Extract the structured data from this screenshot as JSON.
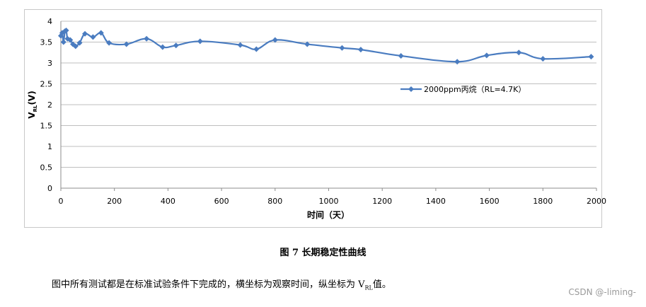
{
  "chart_data": {
    "type": "line",
    "xlabel": "时间（天）",
    "ylabel_main": "V",
    "ylabel_sub": "RL",
    "ylabel_unit": "(V)",
    "xlim": [
      0,
      2000
    ],
    "ylim": [
      0,
      4
    ],
    "xticks": [
      "0",
      "200",
      "400",
      "600",
      "800",
      "1000",
      "1200",
      "1400",
      "1600",
      "1800",
      "2000"
    ],
    "yticks": [
      "0",
      "0.5",
      "1",
      "1.5",
      "2",
      "2.5",
      "3",
      "3.5",
      "4"
    ],
    "grid": true,
    "legend_position": "center-right",
    "series": [
      {
        "name": "2000ppm丙烷（RL=4.7K）",
        "color": "#4a7cc0",
        "x": [
          0,
          5,
          10,
          15,
          20,
          25,
          35,
          45,
          55,
          70,
          90,
          120,
          150,
          180,
          245,
          320,
          380,
          430,
          520,
          670,
          730,
          800,
          920,
          1050,
          1120,
          1270,
          1480,
          1590,
          1710,
          1800,
          1980
        ],
        "y": [
          3.65,
          3.72,
          3.5,
          3.76,
          3.78,
          3.58,
          3.55,
          3.45,
          3.4,
          3.48,
          3.7,
          3.62,
          3.72,
          3.48,
          3.45,
          3.58,
          3.38,
          3.42,
          3.52,
          3.43,
          3.33,
          3.55,
          3.45,
          3.36,
          3.32,
          3.17,
          3.03,
          3.18,
          3.25,
          3.1,
          3.15
        ]
      }
    ]
  },
  "caption": "图 7  长期稳定性曲线",
  "note_before": "图中所有测试都是在标准试验条件下完成的，横坐标为观察时间，纵坐标为 V",
  "note_sub": "RL",
  "note_after": "值。",
  "watermark": "CSDN @-liming-"
}
